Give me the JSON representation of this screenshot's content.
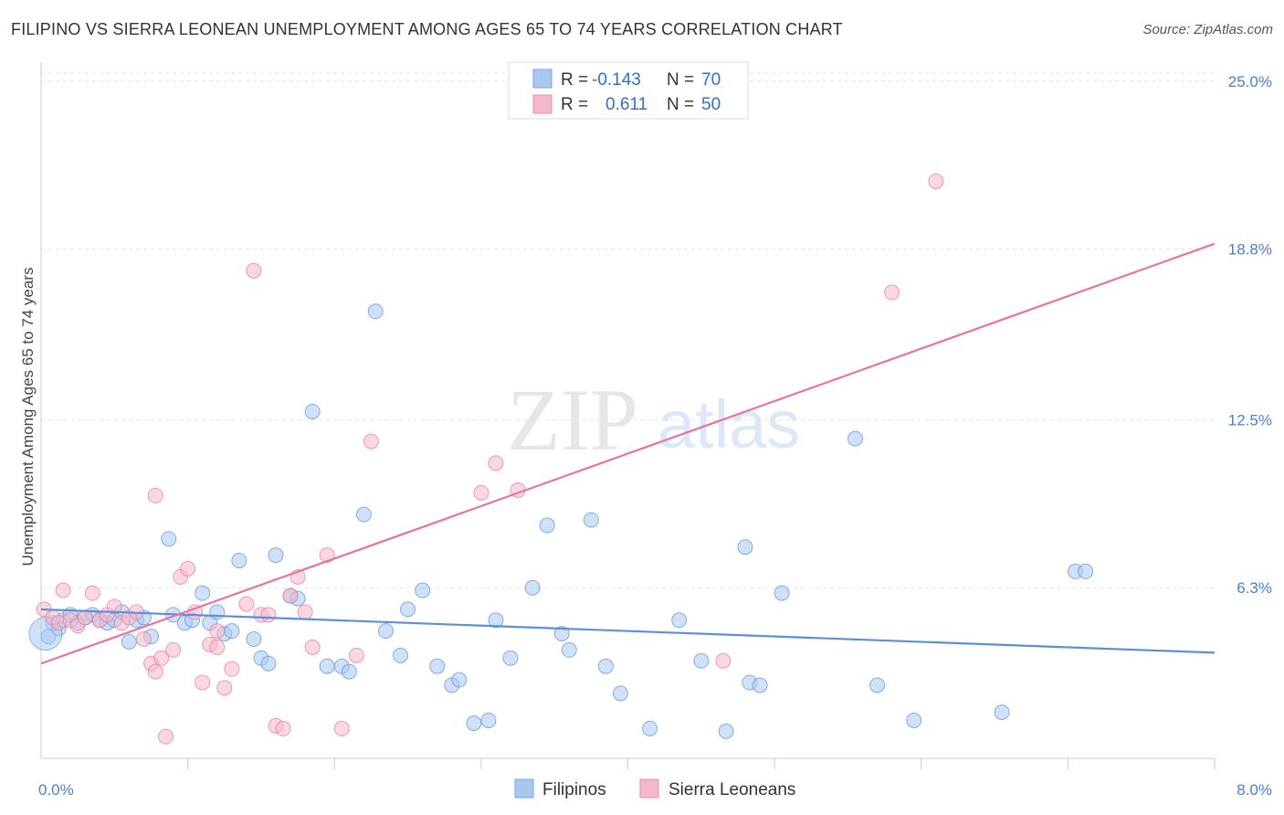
{
  "title": "FILIPINO VS SIERRA LEONEAN UNEMPLOYMENT AMONG AGES 65 TO 74 YEARS CORRELATION CHART",
  "source": "Source: ZipAtlas.com",
  "watermark": {
    "zip": "ZIP",
    "atlas": "atlas"
  },
  "legend": {
    "rows": [
      {
        "r_label": "R =",
        "r_value": "-0.143",
        "n_label": "N =",
        "n_value": "70",
        "color": "#a8c8f0"
      },
      {
        "r_label": "R =",
        "r_value": "0.611",
        "n_label": "N =",
        "n_value": "50",
        "color": "#f5b8cb"
      }
    ]
  },
  "chart_data": {
    "type": "scatter",
    "title": "FILIPINO VS SIERRA LEONEAN UNEMPLOYMENT AMONG AGES 65 TO 74 YEARS CORRELATION CHART",
    "xlabel": "",
    "ylabel": "Unemployment Among Ages 65 to 74 years",
    "xlim": [
      0,
      8
    ],
    "ylim": [
      0,
      25.7
    ],
    "x_tick_labels": [
      "0.0%",
      "8.0%"
    ],
    "y_ticks": [
      6.3,
      12.5,
      18.8,
      25.0
    ],
    "y_tick_labels": [
      "6.3%",
      "12.5%",
      "18.8%",
      "25.0%"
    ],
    "series": [
      {
        "name": "Filipinos",
        "color": "#5b8fd8",
        "fill": "#a8c8f0",
        "trend": {
          "x": [
            0,
            8
          ],
          "y": [
            5.5,
            3.9
          ]
        },
        "points": [
          [
            0.05,
            4.5
          ],
          [
            0.08,
            5.0
          ],
          [
            0.12,
            4.8
          ],
          [
            0.15,
            5.1
          ],
          [
            0.2,
            5.3
          ],
          [
            0.25,
            5.0
          ],
          [
            0.3,
            5.2
          ],
          [
            0.35,
            5.3
          ],
          [
            0.4,
            5.1
          ],
          [
            0.45,
            5.0
          ],
          [
            0.5,
            5.1
          ],
          [
            0.55,
            5.4
          ],
          [
            0.6,
            4.3
          ],
          [
            0.65,
            5.1
          ],
          [
            0.7,
            5.2
          ],
          [
            0.75,
            4.5
          ],
          [
            0.87,
            8.1
          ],
          [
            0.9,
            5.3
          ],
          [
            0.98,
            5.0
          ],
          [
            1.03,
            5.1
          ],
          [
            1.1,
            6.1
          ],
          [
            1.15,
            5.0
          ],
          [
            1.2,
            5.4
          ],
          [
            1.25,
            4.6
          ],
          [
            1.3,
            4.7
          ],
          [
            1.35,
            7.3
          ],
          [
            1.45,
            4.4
          ],
          [
            1.5,
            3.7
          ],
          [
            1.55,
            3.5
          ],
          [
            1.6,
            7.5
          ],
          [
            1.7,
            6.0
          ],
          [
            1.75,
            5.9
          ],
          [
            1.85,
            12.8
          ],
          [
            1.95,
            3.4
          ],
          [
            2.05,
            3.4
          ],
          [
            2.1,
            3.2
          ],
          [
            2.2,
            9.0
          ],
          [
            2.28,
            16.5
          ],
          [
            2.35,
            4.7
          ],
          [
            2.45,
            3.8
          ],
          [
            2.5,
            5.5
          ],
          [
            2.6,
            6.2
          ],
          [
            2.7,
            3.4
          ],
          [
            2.8,
            2.7
          ],
          [
            2.85,
            2.9
          ],
          [
            2.95,
            1.3
          ],
          [
            3.05,
            1.4
          ],
          [
            3.1,
            5.1
          ],
          [
            3.2,
            3.7
          ],
          [
            3.35,
            6.3
          ],
          [
            3.45,
            8.6
          ],
          [
            3.55,
            4.6
          ],
          [
            3.6,
            4.0
          ],
          [
            3.75,
            8.8
          ],
          [
            3.85,
            3.4
          ],
          [
            3.95,
            2.4
          ],
          [
            4.15,
            1.1
          ],
          [
            4.35,
            5.1
          ],
          [
            4.5,
            3.6
          ],
          [
            4.67,
            1.0
          ],
          [
            4.8,
            7.8
          ],
          [
            4.83,
            2.8
          ],
          [
            4.9,
            2.7
          ],
          [
            5.05,
            6.1
          ],
          [
            5.55,
            11.8
          ],
          [
            5.7,
            2.7
          ],
          [
            5.95,
            1.4
          ],
          [
            6.55,
            1.7
          ],
          [
            7.05,
            6.9
          ],
          [
            7.12,
            6.9
          ]
        ]
      },
      {
        "name": "Sierra Leoneans",
        "color": "#e8739c",
        "fill": "#f5b8cb",
        "trend": {
          "x": [
            0,
            8
          ],
          "y": [
            3.5,
            19.0
          ]
        },
        "points": [
          [
            0.02,
            5.5
          ],
          [
            0.08,
            5.2
          ],
          [
            0.12,
            5.0
          ],
          [
            0.15,
            6.2
          ],
          [
            0.2,
            5.1
          ],
          [
            0.25,
            4.9
          ],
          [
            0.3,
            5.2
          ],
          [
            0.35,
            6.1
          ],
          [
            0.4,
            5.1
          ],
          [
            0.45,
            5.3
          ],
          [
            0.5,
            5.6
          ],
          [
            0.55,
            5.0
          ],
          [
            0.6,
            5.2
          ],
          [
            0.65,
            5.4
          ],
          [
            0.7,
            4.4
          ],
          [
            0.75,
            3.5
          ],
          [
            0.78,
            3.2
          ],
          [
            0.82,
            3.7
          ],
          [
            0.85,
            0.8
          ],
          [
            0.9,
            4.0
          ],
          [
            0.95,
            6.7
          ],
          [
            1.0,
            7.0
          ],
          [
            1.05,
            5.4
          ],
          [
            1.1,
            2.8
          ],
          [
            1.15,
            4.2
          ],
          [
            1.2,
            4.1
          ],
          [
            1.25,
            2.6
          ],
          [
            1.3,
            3.3
          ],
          [
            1.4,
            5.7
          ],
          [
            1.45,
            18.0
          ],
          [
            1.5,
            5.3
          ],
          [
            1.55,
            5.3
          ],
          [
            1.6,
            1.2
          ],
          [
            1.65,
            1.1
          ],
          [
            1.7,
            6.0
          ],
          [
            1.75,
            6.7
          ],
          [
            1.8,
            5.4
          ],
          [
            1.85,
            4.1
          ],
          [
            1.95,
            7.5
          ],
          [
            2.05,
            1.1
          ],
          [
            2.15,
            3.8
          ],
          [
            2.25,
            11.7
          ],
          [
            3.0,
            9.8
          ],
          [
            3.1,
            10.9
          ],
          [
            3.25,
            9.9
          ],
          [
            4.65,
            3.6
          ],
          [
            5.8,
            17.2
          ],
          [
            6.1,
            21.3
          ],
          [
            1.2,
            4.7
          ],
          [
            0.78,
            9.7
          ]
        ]
      }
    ]
  },
  "bottom_legend": [
    {
      "label": "Filipinos",
      "color": "#a8c8f0"
    },
    {
      "label": "Sierra Leoneans",
      "color": "#f5b8cb"
    }
  ]
}
